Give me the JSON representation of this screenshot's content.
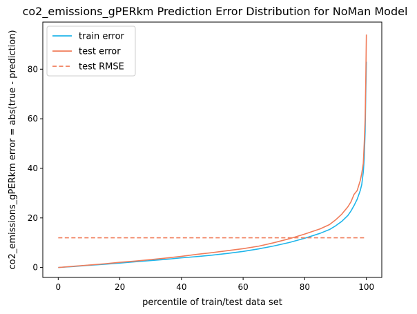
{
  "chart_data": {
    "type": "line",
    "title": "co2_emissions_gPERkm Prediction Error Distribution for NoMan Model",
    "xlabel": "percentile of train/test data set",
    "ylabel": "co2_emissions_gPERkm error = abs(true - prediction)",
    "xlim": [
      -5,
      105
    ],
    "ylim": [
      -4,
      99
    ],
    "xticks": [
      "0",
      "20",
      "40",
      "60",
      "80",
      "100"
    ],
    "yticks": [
      "0",
      "20",
      "40",
      "60",
      "80"
    ],
    "grid": false,
    "legend_position": "top-left",
    "series": [
      {
        "name": "train error",
        "color": "#1fb5ea",
        "style": "solid",
        "x": [
          0,
          5,
          10,
          15,
          20,
          25,
          30,
          35,
          40,
          45,
          50,
          55,
          60,
          65,
          70,
          75,
          80,
          85,
          88,
          90,
          92,
          94,
          95,
          96,
          97,
          98,
          98.5,
          99,
          99.3,
          99.6,
          99.8,
          100
        ],
        "y": [
          0,
          0.4,
          0.9,
          1.3,
          1.8,
          2.3,
          2.8,
          3.3,
          3.9,
          4.4,
          5.0,
          5.7,
          6.5,
          7.5,
          8.7,
          10.1,
          11.8,
          13.8,
          15.3,
          16.8,
          18.6,
          21.0,
          22.8,
          25.0,
          27.5,
          31.0,
          33.5,
          38.5,
          44.0,
          55.0,
          70.0,
          83.0
        ]
      },
      {
        "name": "test error",
        "color": "#f07c5a",
        "style": "solid",
        "x": [
          0,
          5,
          10,
          15,
          20,
          25,
          30,
          35,
          40,
          45,
          50,
          55,
          60,
          65,
          70,
          75,
          80,
          85,
          88,
          90,
          92,
          94,
          95,
          96,
          97,
          98,
          98.5,
          99,
          99.3,
          99.6,
          99.8,
          100
        ],
        "y": [
          0,
          0.5,
          1.0,
          1.5,
          2.1,
          2.6,
          3.2,
          3.8,
          4.5,
          5.3,
          6.0,
          6.8,
          7.6,
          8.6,
          10.0,
          11.6,
          13.5,
          15.6,
          17.3,
          19.2,
          21.5,
          24.5,
          26.5,
          29.5,
          31.0,
          35.0,
          38.0,
          42.0,
          50.0,
          60.0,
          75.0,
          94.0
        ]
      },
      {
        "name": "test RMSE",
        "color": "#f07c5a",
        "style": "dashed",
        "x": [
          0,
          100
        ],
        "y": [
          12,
          12
        ]
      }
    ]
  }
}
